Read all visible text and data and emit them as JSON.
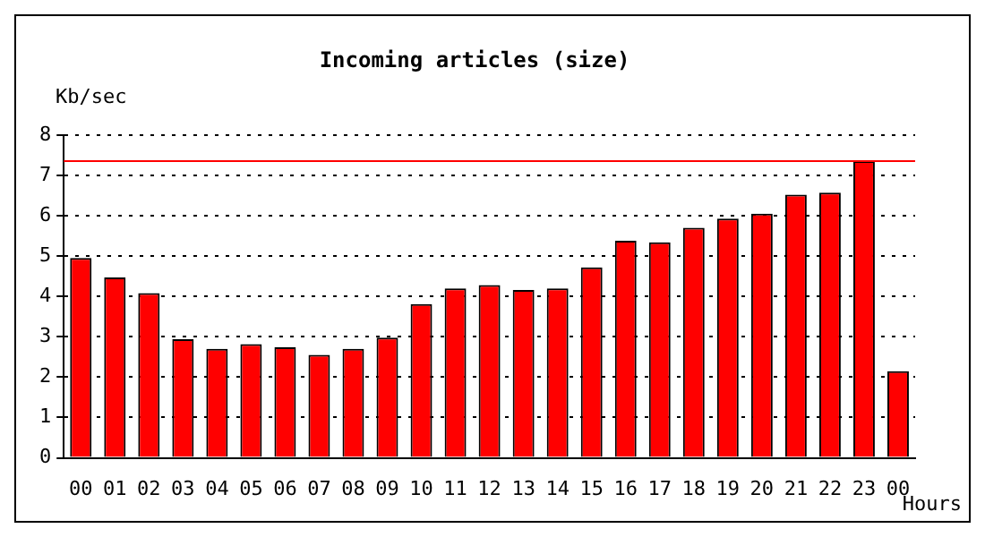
{
  "chart_data": {
    "type": "bar",
    "title": "Incoming articles (size)",
    "xlabel": "Hours",
    "ylabel": "Kb/sec",
    "categories": [
      "00",
      "01",
      "02",
      "03",
      "04",
      "05",
      "06",
      "07",
      "08",
      "09",
      "10",
      "11",
      "12",
      "13",
      "14",
      "15",
      "16",
      "17",
      "18",
      "19",
      "20",
      "21",
      "22",
      "23",
      "00"
    ],
    "values": [
      4.95,
      4.47,
      4.08,
      2.94,
      2.7,
      2.82,
      2.74,
      2.55,
      2.7,
      2.98,
      3.81,
      4.2,
      4.28,
      4.16,
      4.2,
      4.72,
      5.38,
      5.34,
      5.7,
      5.93,
      6.05,
      6.52,
      6.57,
      7.35,
      2.15
    ],
    "color": "#ff0000",
    "ylim": [
      0,
      8
    ],
    "yticks": [
      0,
      1,
      2,
      3,
      4,
      5,
      6,
      7,
      8
    ],
    "grid": "y",
    "ref_lines": [
      {
        "axis": "y",
        "value": 7.35,
        "color": "#ff0000"
      }
    ]
  }
}
